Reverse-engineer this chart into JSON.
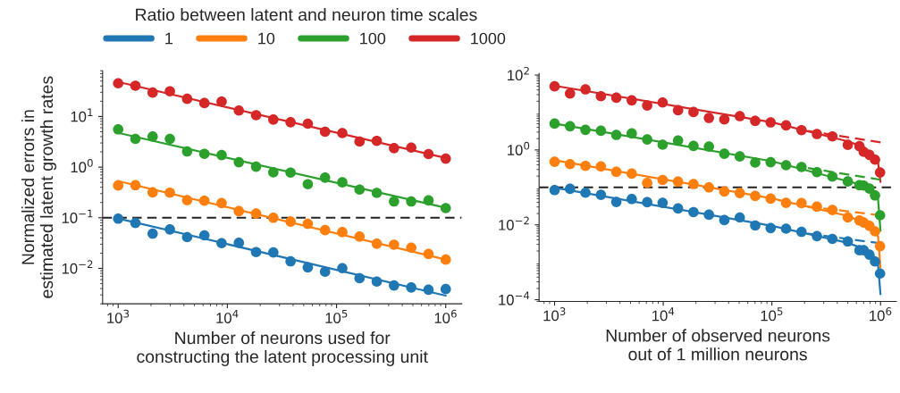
{
  "chart_data": [
    {
      "type": "scatter",
      "xlabel": "Number of neurons used for\nconstructing the latent processing unit",
      "ylabel": "Normalized errors in\nestimated latent growth rates",
      "legend_title": "Ratio between latent and neuron time scales",
      "legend": "top",
      "log": "xy",
      "grid": false,
      "marker": "circle",
      "x": [
        1000,
        1438,
        2069,
        2976,
        4281,
        6158,
        8859,
        12743,
        18330,
        26367,
        37927,
        54556,
        78476,
        112884,
        162378,
        233572,
        335982,
        483293,
        695193,
        1000000
      ],
      "xlim": [
        720,
        1400000
      ],
      "xticks": [
        {
          "value": 1000,
          "label": "10$^{3}$"
        },
        {
          "value": 10000,
          "label": "10$^{4}$"
        },
        {
          "value": 100000,
          "label": "10$^{5}$"
        },
        {
          "value": 1000000,
          "label": "10$^{6}$"
        }
      ],
      "ylim": [
        0.002,
        80
      ],
      "yticks": [
        {
          "value": 0.01,
          "label": "10$^{−2}$"
        },
        {
          "value": 0.1,
          "label": "10$^{−1}$"
        },
        {
          "value": 1,
          "label": "10$^{0}$"
        },
        {
          "value": 10,
          "label": "10$^{1}$"
        }
      ],
      "ref_lines": [
        {
          "axis": "y",
          "value": 0.1,
          "color": "#222222",
          "line_style": "dashed"
        }
      ],
      "series": [
        {
          "name": "1",
          "color": "#1f77b4",
          "values": [
            0.096,
            0.079,
            0.0486,
            0.0589,
            0.0414,
            0.0449,
            0.0315,
            0.0319,
            0.021,
            0.0207,
            0.0138,
            0.0105,
            0.0086,
            0.0101,
            0.0064,
            0.0055,
            0.0046,
            0.0042,
            0.0038,
            0.0039
          ]
        },
        {
          "name": "10",
          "color": "#ff7f0e",
          "values": [
            0.434,
            0.44,
            0.317,
            0.313,
            0.223,
            0.217,
            0.195,
            0.135,
            0.121,
            0.1,
            0.084,
            0.076,
            0.057,
            0.052,
            0.0425,
            0.0307,
            0.0294,
            0.0257,
            0.0193,
            0.0149
          ]
        },
        {
          "name": "100",
          "color": "#2ca02c",
          "values": [
            5.57,
            3.61,
            4.03,
            3.61,
            2.04,
            1.83,
            1.73,
            1.25,
            1.02,
            0.79,
            0.78,
            0.46,
            0.62,
            0.5,
            0.36,
            0.31,
            0.21,
            0.21,
            0.22,
            0.155
          ]
        },
        {
          "name": "1000",
          "color": "#d62728",
          "values": [
            45.2,
            40.5,
            29.6,
            31.4,
            22.3,
            18.4,
            19.7,
            13.1,
            10.6,
            8.7,
            7.7,
            7.2,
            5.0,
            4.7,
            3.2,
            3.3,
            2.37,
            2.43,
            1.81,
            1.47
          ]
        },
        {
          "type": "line",
          "marker": "none",
          "color": "#1f77b4",
          "x": [
            1000,
            1000000
          ],
          "values": [
            0.097,
            0.0029
          ]
        },
        {
          "type": "line",
          "marker": "none",
          "color": "#ff7f0e",
          "x": [
            1000,
            1000000
          ],
          "values": [
            0.53,
            0.0149
          ]
        },
        {
          "type": "line",
          "marker": "none",
          "color": "#2ca02c",
          "x": [
            1000,
            1000000
          ],
          "values": [
            4.74,
            0.157
          ]
        },
        {
          "type": "line",
          "marker": "none",
          "color": "#d62728",
          "x": [
            1000,
            1000000
          ],
          "values": [
            48,
            1.51
          ]
        }
      ]
    },
    {
      "type": "scatter",
      "xlabel": "Number of observed neurons\nout of 1 million neurons",
      "log": "xy",
      "grid": false,
      "marker": "circle",
      "x": [
        1000,
        1387,
        1924,
        2668,
        3700,
        5131,
        7117,
        9870,
        13689,
        18985,
        26330,
        36518,
        50647,
        70242,
        97419,
        135110,
        187390,
        259880,
        360430,
        500000,
        640000,
        700000,
        790000,
        890000,
        990000
      ],
      "xlim": [
        720,
        1400000
      ],
      "xticks": [
        {
          "value": 1000,
          "label": "10$^{3}$"
        },
        {
          "value": 10000,
          "label": "10$^{4}$"
        },
        {
          "value": 100000,
          "label": "10$^{5}$"
        },
        {
          "value": 1000000,
          "label": "10$^{6}$"
        }
      ],
      "ylim": [
        9e-05,
        110
      ],
      "yticks": [
        {
          "value": 0.0001,
          "label": "10$^{−4}$"
        },
        {
          "value": 0.01,
          "label": "10$^{−2}$"
        },
        {
          "value": 1,
          "label": "10$^{0}$"
        },
        {
          "value": 100,
          "label": "10$^{2}$"
        }
      ],
      "ref_lines": [
        {
          "axis": "y",
          "value": 0.1,
          "color": "#222222",
          "line_style": "dashed"
        }
      ],
      "series": [
        {
          "color": "#1f77b4",
          "values": [
            0.0849,
            0.0914,
            0.0721,
            0.0634,
            0.0408,
            0.049,
            0.0401,
            0.0387,
            0.0273,
            0.0219,
            0.0186,
            0.0134,
            0.0157,
            0.0096,
            0.0082,
            0.0079,
            0.0065,
            0.005,
            0.0042,
            0.0036,
            0.0021,
            0.0021,
            0.0016,
            0.00105,
            0.0005
          ]
        },
        {
          "color": "#ff7f0e",
          "values": [
            0.484,
            0.418,
            0.375,
            0.361,
            0.26,
            0.233,
            0.132,
            0.158,
            0.142,
            0.123,
            0.1,
            0.0776,
            0.0708,
            0.059,
            0.05,
            0.0387,
            0.038,
            0.0305,
            0.0249,
            0.0157,
            0.0131,
            0.0115,
            0.0094,
            0.0067,
            0.0027
          ]
        },
        {
          "color": "#2ca02c",
          "values": [
            5.05,
            4.29,
            3.44,
            3.25,
            2.52,
            2.76,
            1.91,
            1.38,
            1.78,
            1.28,
            1.23,
            0.79,
            0.67,
            0.46,
            0.47,
            0.39,
            0.35,
            0.255,
            0.194,
            0.144,
            0.114,
            0.112,
            0.093,
            0.061,
            0.018
          ]
        },
        {
          "color": "#d62728",
          "values": [
            49.9,
            32.1,
            41.5,
            27.2,
            24.8,
            21.1,
            15.4,
            18.5,
            11.5,
            10.3,
            7.15,
            6.53,
            7.98,
            5.96,
            5.43,
            4.53,
            3.38,
            2.66,
            2.3,
            1.37,
            1.26,
            0.89,
            0.74,
            0.55,
            0.25
          ]
        },
        {
          "type": "line",
          "marker": "none",
          "color": "#1f77b4",
          "x": [
            1000,
            100000,
            500000,
            700000,
            850000,
            950000,
            999000
          ],
          "values": [
            0.098,
            0.0094,
            0.0033,
            0.0023,
            0.0016,
            0.00084,
            0.00014
          ]
        },
        {
          "type": "line",
          "marker": "none",
          "color": "#ff7f0e",
          "x": [
            1000,
            100000,
            500000,
            700000,
            850000,
            950000,
            999000
          ],
          "values": [
            0.53,
            0.051,
            0.0173,
            0.0115,
            0.0083,
            0.0048,
            0.00072
          ]
        },
        {
          "type": "line",
          "marker": "none",
          "color": "#2ca02c",
          "x": [
            1000,
            100000,
            500000,
            700000,
            850000,
            950000,
            999000
          ],
          "values": [
            5.05,
            0.5,
            0.145,
            0.114,
            0.089,
            0.047,
            0.0069
          ]
        },
        {
          "type": "line",
          "marker": "none",
          "color": "#d62728",
          "x": [
            1000,
            100000,
            500000,
            700000,
            850000,
            950000,
            999000
          ],
          "values": [
            51.8,
            5.5,
            1.7,
            1.2,
            0.74,
            0.45,
            0.14
          ]
        },
        {
          "type": "line",
          "marker": "none",
          "line_style": "dashed",
          "color": "#1f77b4",
          "x": [
            1000000,
            200000
          ],
          "values": [
            0.0032,
            0.006
          ]
        },
        {
          "type": "line",
          "marker": "none",
          "line_style": "dashed",
          "color": "#ff7f0e",
          "x": [
            1000000,
            200000
          ],
          "values": [
            0.0179,
            0.0316
          ]
        },
        {
          "type": "line",
          "marker": "none",
          "line_style": "dashed",
          "color": "#2ca02c",
          "x": [
            1000000,
            200000
          ],
          "values": [
            0.16,
            0.34
          ]
        },
        {
          "type": "line",
          "marker": "none",
          "line_style": "dashed",
          "color": "#d62728",
          "x": [
            1000000,
            200000
          ],
          "values": [
            1.6,
            3.3
          ]
        }
      ]
    }
  ]
}
